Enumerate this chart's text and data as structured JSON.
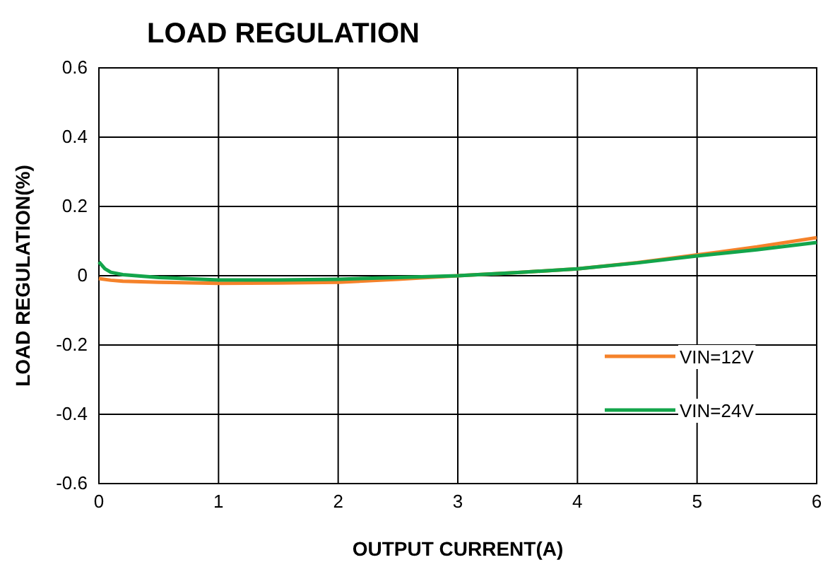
{
  "chart_data": {
    "type": "line",
    "title": "LOAD REGULATION",
    "xlabel": "OUTPUT CURRENT(A)",
    "ylabel": "LOAD REGULATION(%)",
    "xlim": [
      0,
      6
    ],
    "xticks": [
      0,
      1,
      2,
      3,
      4,
      5,
      6
    ],
    "ylim": [
      -0.6,
      0.6
    ],
    "yticks": [
      -0.6,
      -0.4,
      -0.2,
      0,
      0.2,
      0.4,
      0.6
    ],
    "grid": true,
    "legend": "bottom right",
    "marker": "none",
    "line_style": "solid",
    "series": [
      {
        "name": "VIN=12V",
        "color": "#f5822a",
        "x": [
          0,
          0.1,
          0.2,
          0.5,
          1,
          1.5,
          2,
          2.5,
          3,
          3.5,
          4,
          4.5,
          5,
          5.5,
          6
        ],
        "values": [
          -0.008,
          -0.013,
          -0.016,
          -0.019,
          -0.022,
          -0.021,
          -0.019,
          -0.01,
          0,
          0.009,
          0.02,
          0.038,
          0.06,
          0.083,
          0.11
        ]
      },
      {
        "name": "VIN=24V",
        "color": "#13a54b",
        "x": [
          0,
          0.05,
          0.1,
          0.2,
          0.5,
          1,
          1.5,
          2,
          2.5,
          3,
          3.5,
          4,
          4.5,
          5,
          5.5,
          6
        ],
        "values": [
          0.04,
          0.02,
          0.01,
          0.003,
          -0.005,
          -0.012,
          -0.012,
          -0.01,
          -0.005,
          0,
          0.009,
          0.02,
          0.037,
          0.057,
          0.075,
          0.096
        ]
      }
    ]
  }
}
